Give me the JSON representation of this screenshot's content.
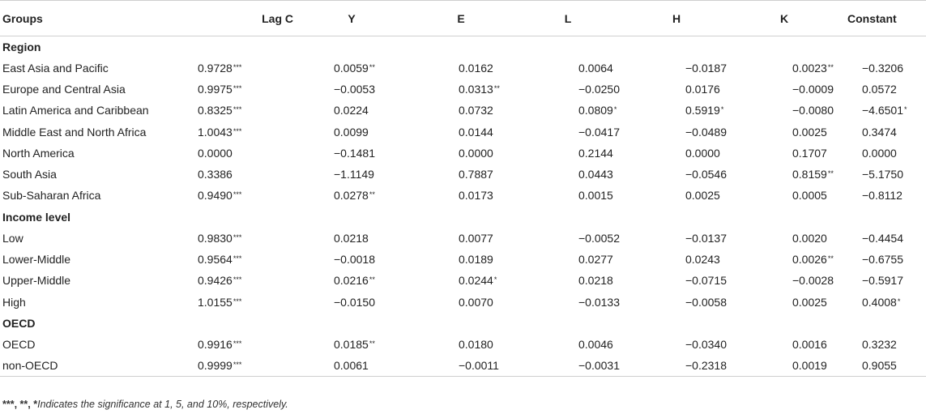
{
  "table": {
    "headers": [
      "Groups",
      "Lag C",
      "Y",
      "E",
      "L",
      "H",
      "K",
      "Constant"
    ],
    "rows": [
      {
        "type": "group",
        "label": "Region"
      },
      {
        "type": "data",
        "label": "East Asia and Pacific",
        "values": [
          "0.9728",
          "0.0059",
          "0.0162",
          "0.0064",
          "−0.0187",
          "0.0023",
          "−0.3206"
        ],
        "stars": [
          "***",
          "**",
          "",
          "",
          "",
          "**",
          ""
        ]
      },
      {
        "type": "data",
        "label": "Europe and Central Asia",
        "values": [
          "0.9975",
          "−0.0053",
          "0.0313",
          "−0.0250",
          "0.0176",
          "−0.0009",
          "0.0572"
        ],
        "stars": [
          "***",
          "",
          "**",
          "",
          "",
          "",
          ""
        ]
      },
      {
        "type": "data",
        "label": "Latin America and Caribbean",
        "values": [
          "0.8325",
          "0.0224",
          "0.0732",
          "0.0809",
          "0.5919",
          "−0.0080",
          "−4.6501"
        ],
        "stars": [
          "***",
          "",
          "",
          "*",
          "*",
          "",
          "*"
        ]
      },
      {
        "type": "data",
        "label": "Middle East and North Africa",
        "values": [
          "1.0043",
          "0.0099",
          "0.0144",
          "−0.0417",
          "−0.0489",
          "0.0025",
          "0.3474"
        ],
        "stars": [
          "***",
          "",
          "",
          "",
          "",
          "",
          ""
        ]
      },
      {
        "type": "data",
        "label": "North America",
        "values": [
          "0.0000",
          "−0.1481",
          "0.0000",
          "0.2144",
          "0.0000",
          "0.1707",
          "0.0000"
        ],
        "stars": [
          "",
          "",
          "",
          "",
          "",
          "",
          ""
        ]
      },
      {
        "type": "data",
        "label": "South Asia",
        "values": [
          "0.3386",
          "−1.1149",
          "0.7887",
          "0.0443",
          "−0.0546",
          "0.8159",
          "−5.1750"
        ],
        "stars": [
          "",
          "",
          "",
          "",
          "",
          "**",
          ""
        ]
      },
      {
        "type": "data",
        "label": "Sub-Saharan Africa",
        "values": [
          "0.9490",
          "0.0278",
          "0.0173",
          "0.0015",
          "0.0025",
          "0.0005",
          "−0.8112"
        ],
        "stars": [
          "***",
          "**",
          "",
          "",
          "",
          "",
          ""
        ]
      },
      {
        "type": "group",
        "label": "Income level"
      },
      {
        "type": "data",
        "label": "Low",
        "values": [
          "0.9830",
          "0.0218",
          "0.0077",
          "−0.0052",
          "−0.0137",
          "0.0020",
          "−0.4454"
        ],
        "stars": [
          "***",
          "",
          "",
          "",
          "",
          "",
          ""
        ]
      },
      {
        "type": "data",
        "label": "Lower-Middle",
        "values": [
          "0.9564",
          "−0.0018",
          "0.0189",
          "0.0277",
          "0.0243",
          "0.0026",
          "−0.6755"
        ],
        "stars": [
          "***",
          "",
          "",
          "",
          "",
          "**",
          ""
        ]
      },
      {
        "type": "data",
        "label": "Upper-Middle",
        "values": [
          "0.9426",
          "0.0216",
          "0.0244",
          "0.0218",
          "−0.0715",
          "−0.0028",
          "−0.5917"
        ],
        "stars": [
          "***",
          "**",
          "*",
          "",
          "",
          "",
          ""
        ]
      },
      {
        "type": "data",
        "label": "High",
        "values": [
          "1.0155",
          "−0.0150",
          "0.0070",
          "−0.0133",
          "−0.0058",
          "0.0025",
          "0.4008"
        ],
        "stars": [
          "***",
          "",
          "",
          "",
          "",
          "",
          "*"
        ]
      },
      {
        "type": "group",
        "label": "OECD"
      },
      {
        "type": "data",
        "label": "OECD",
        "values": [
          "0.9916",
          "0.0185",
          "0.0180",
          "0.0046",
          "−0.0340",
          "0.0016",
          "0.3232"
        ],
        "stars": [
          "***",
          "**",
          "",
          "",
          "",
          "",
          ""
        ]
      },
      {
        "type": "data",
        "label": "non-OECD",
        "values": [
          "0.9999",
          "0.0061",
          "−0.0011",
          "−0.0031",
          "−0.2318",
          "0.0019",
          "0.9055"
        ],
        "stars": [
          "***",
          "",
          "",
          "",
          "",
          "",
          ""
        ]
      }
    ]
  },
  "footnote": {
    "marks": "***, **, *",
    "text": "Indicates the significance at 1, 5, and 10%, respectively."
  }
}
